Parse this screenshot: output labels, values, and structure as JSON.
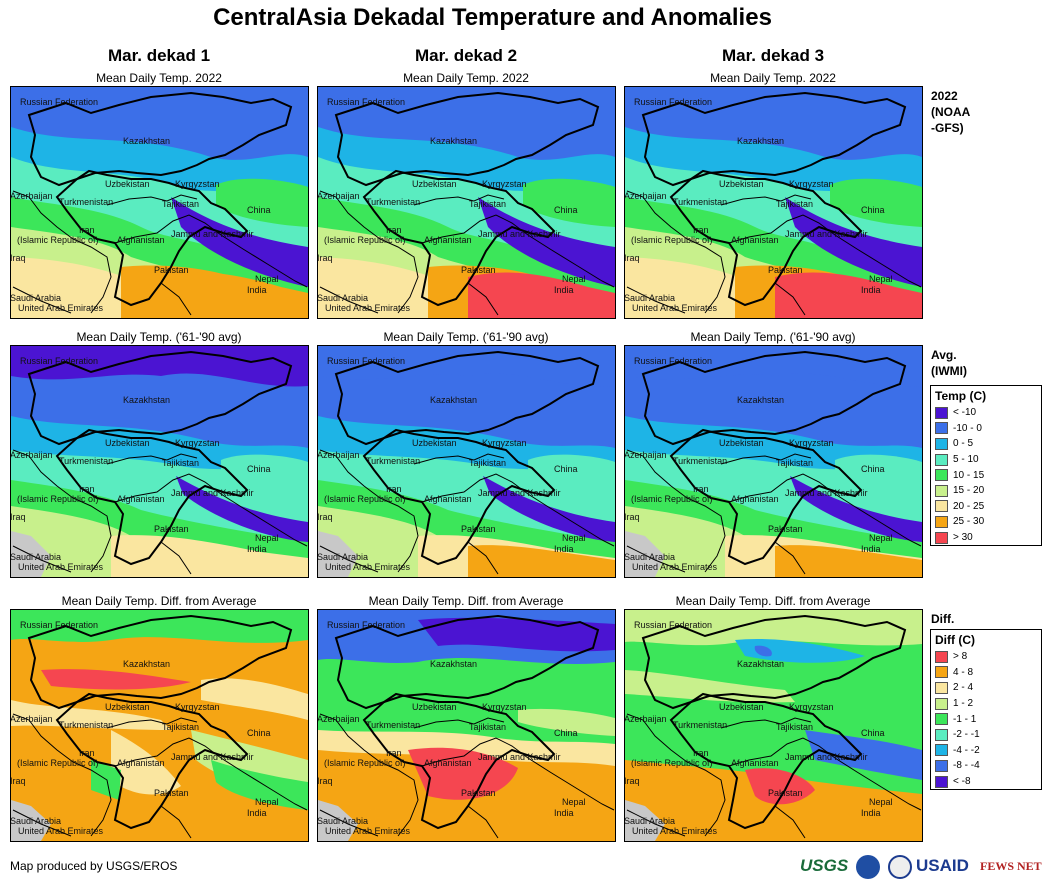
{
  "title": "CentralAsia Dekadal Temperature and Anomalies",
  "columns": [
    "Mar. dekad 1",
    "Mar. dekad 2",
    "Mar. dekad 3"
  ],
  "rows": [
    {
      "panel_title": "Mean Daily Temp. 2022",
      "label": "2022\n(NOAA\n-GFS)"
    },
    {
      "panel_title": "Mean Daily Temp. ('61-'90 avg)",
      "label": "Avg.\n(IWMI)"
    },
    {
      "panel_title": "Mean Daily Temp. Diff. from Average",
      "label": "Diff."
    }
  ],
  "map_labels": [
    "Russian Federation",
    "Kazakhstan",
    "Uzbekistan",
    "Kyrgyzstan",
    "Azerbaijan",
    "Turkmenistan",
    "Tajikistan",
    "China",
    "Iran",
    "(Islamic Republic of)",
    "Afghanistan",
    "Jammu and Kashmir",
    "Iraq",
    "Pakistan",
    "India",
    "Nepal",
    "Saudi Arabia",
    "United Arab Emirates"
  ],
  "temp_legend": {
    "title": "Temp (C)",
    "items": [
      {
        "label": "< -10",
        "color": "#4b14d2"
      },
      {
        "label": "-10 - 0",
        "color": "#3c6fe8"
      },
      {
        "label": "0 - 5",
        "color": "#1eb4e6"
      },
      {
        "label": "5 - 10",
        "color": "#5aecc0"
      },
      {
        "label": "10 - 15",
        "color": "#3ce65a"
      },
      {
        "label": "15 - 20",
        "color": "#c8f08c"
      },
      {
        "label": "20 - 25",
        "color": "#fae6a0"
      },
      {
        "label": "25 - 30",
        "color": "#f5a514"
      },
      {
        "label": "> 30",
        "color": "#f54650"
      }
    ]
  },
  "diff_legend": {
    "title": "Diff (C)",
    "items": [
      {
        "label": "> 8",
        "color": "#f54650"
      },
      {
        "label": "4 - 8",
        "color": "#f5a514"
      },
      {
        "label": "2 - 4",
        "color": "#fae6a0"
      },
      {
        "label": "1 - 2",
        "color": "#c8f08c"
      },
      {
        "label": "-1 - 1",
        "color": "#3ce65a"
      },
      {
        "label": "-2 - -1",
        "color": "#5aecc0"
      },
      {
        "label": "-4 - -2",
        "color": "#1eb4e6"
      },
      {
        "label": "-8 - -4",
        "color": "#3c6fe8"
      },
      {
        "label": "< -8",
        "color": "#4b14d2"
      }
    ]
  },
  "credit": "Map produced by USGS/EROS",
  "logos": [
    "USGS",
    "USAID",
    "FEWS NET"
  ],
  "colors": {
    "very_cold": "#4b14d2",
    "cold": "#3c6fe8",
    "cool": "#1eb4e6",
    "mild": "#5aecc0",
    "green": "#3ce65a",
    "light_green": "#c8f08c",
    "tan": "#fae6a0",
    "orange": "#f5a514",
    "red": "#f54650",
    "no_data": "#c8c8c8"
  }
}
